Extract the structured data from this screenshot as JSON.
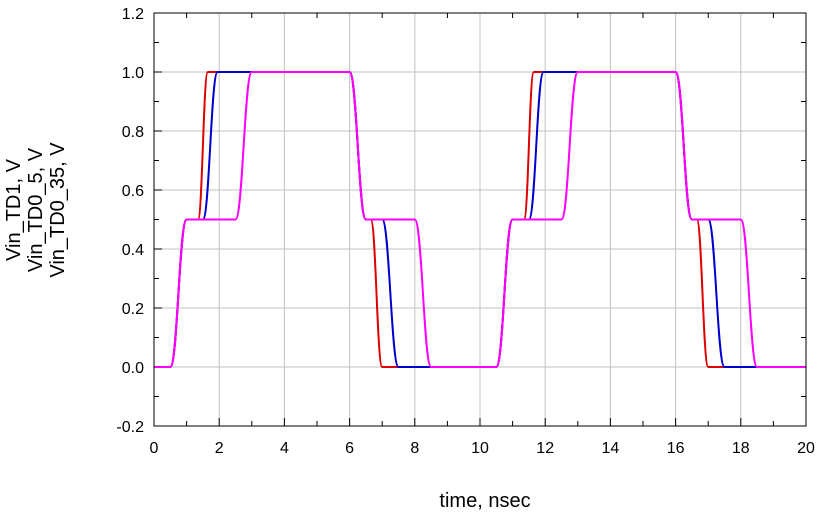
{
  "chart_data": {
    "type": "line",
    "xlabel": "time, nsec",
    "ylabels": [
      {
        "text": "Vin_TD1, V",
        "color": "#ff00ff"
      },
      {
        "text": "Vin_TD0_5, V",
        "color": "#0000cc"
      },
      {
        "text": "Vin_TD0_35, V",
        "color": "#dd0000"
      }
    ],
    "xlim": [
      0,
      20
    ],
    "ylim": [
      -0.2,
      1.2
    ],
    "xticks": [
      0,
      2,
      4,
      6,
      8,
      10,
      12,
      14,
      16,
      18,
      20
    ],
    "yticks": [
      -0.2,
      0.0,
      0.2,
      0.4,
      0.6,
      0.8,
      1.0,
      1.2
    ],
    "ytick_labels": [
      "-0.2",
      "0.0",
      "0.2",
      "0.4",
      "0.6",
      "0.8",
      "1.0",
      "1.2"
    ],
    "grid": true,
    "series": [
      {
        "name": "Vin_TD0_35",
        "color": "#dd0000",
        "x": [
          0,
          0.5,
          1.0,
          1.35,
          1.65,
          2.0,
          6.0,
          6.5,
          6.65,
          7.0,
          10.0,
          10.5,
          11.0,
          11.35,
          11.65,
          12.0,
          16.0,
          16.5,
          16.65,
          17.0,
          20.0
        ],
        "y": [
          0,
          0,
          0.5,
          0.5,
          1.0,
          1.0,
          1.0,
          0.5,
          0.5,
          0,
          0,
          0,
          0.5,
          0.5,
          1.0,
          1.0,
          1.0,
          0.5,
          0.5,
          0,
          0
        ]
      },
      {
        "name": "Vin_TD0_5",
        "color": "#0000cc",
        "x": [
          0,
          0.5,
          1.0,
          1.5,
          1.95,
          2.2,
          6.0,
          6.5,
          7.0,
          7.5,
          10.0,
          10.5,
          11.0,
          11.5,
          11.95,
          12.2,
          16.0,
          16.5,
          17.0,
          17.5,
          20.0
        ],
        "y": [
          0,
          0,
          0.5,
          0.5,
          1.0,
          1.0,
          1.0,
          0.5,
          0.5,
          0,
          0,
          0,
          0.5,
          0.5,
          1.0,
          1.0,
          1.0,
          0.5,
          0.5,
          0,
          0
        ]
      },
      {
        "name": "Vin_TD1",
        "color": "#ff00ff",
        "x": [
          0,
          0.5,
          1.0,
          2.5,
          3.0,
          6.0,
          6.5,
          8.0,
          8.5,
          10.0,
          10.5,
          11.0,
          12.5,
          13.0,
          16.0,
          16.5,
          18.0,
          18.5,
          20.0
        ],
        "y": [
          0,
          0,
          0.5,
          0.5,
          1.0,
          1.0,
          0.5,
          0.5,
          0,
          0,
          0,
          0.5,
          0.5,
          1.0,
          1.0,
          0.5,
          0.5,
          0,
          0
        ]
      }
    ]
  }
}
